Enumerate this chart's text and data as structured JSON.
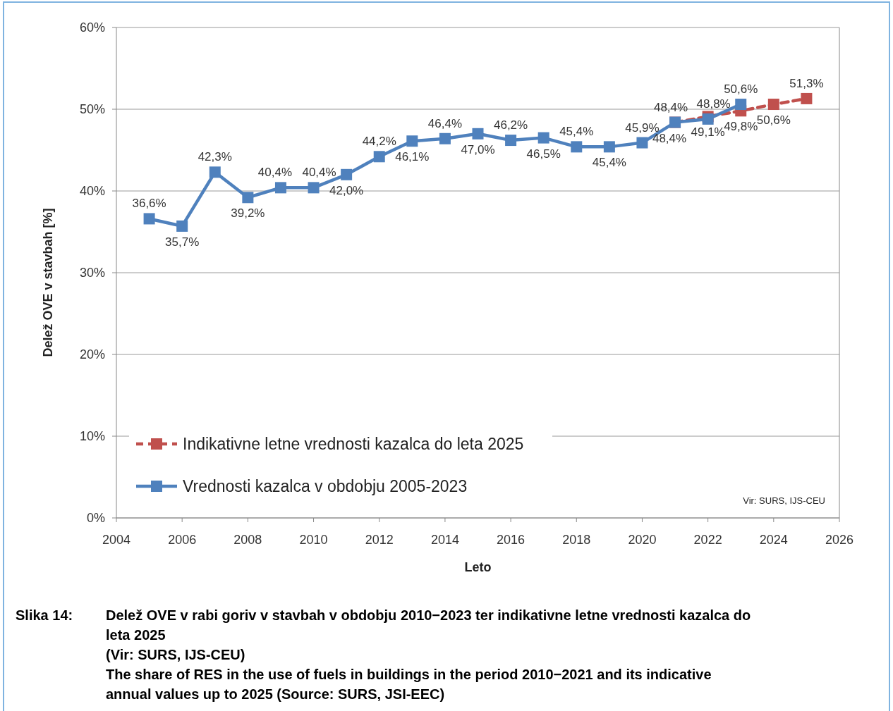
{
  "chart_data": {
    "type": "line",
    "xlabel": "Leto",
    "ylabel": "Delež OVE v stavbah [%]",
    "xlim": [
      2004,
      2026
    ],
    "xticks": [
      2004,
      2006,
      2008,
      2010,
      2012,
      2014,
      2016,
      2018,
      2020,
      2022,
      2024,
      2026
    ],
    "ylim": [
      0,
      60
    ],
    "yticks": [
      {
        "value": 0,
        "label": "0%"
      },
      {
        "value": 10,
        "label": "10%"
      },
      {
        "value": 20,
        "label": "20%"
      },
      {
        "value": 30,
        "label": "30%"
      },
      {
        "value": 40,
        "label": "40%"
      },
      {
        "value": 50,
        "label": "50%"
      },
      {
        "value": 60,
        "label": "60%"
      }
    ],
    "grid": "y",
    "legend": "bottom left",
    "marker": "square",
    "data_labels": true,
    "series": [
      {
        "name": "Indikativne letne vrednosti kazalca do leta 2025",
        "color": "#c0504d",
        "line_style": "dashed",
        "x": [
          2021,
          2022,
          2023,
          2024,
          2025
        ],
        "values": [
          48.4,
          49.1,
          49.8,
          50.6,
          51.3
        ],
        "value_labels": [
          "48,4%",
          "49,1%",
          "49,8%",
          "50,6%",
          "51,3%"
        ]
      },
      {
        "name": "Vrednosti kazalca v obdobju 2005-2023",
        "color": "#4f81bd",
        "line_style": "solid",
        "x": [
          2005,
          2006,
          2007,
          2008,
          2009,
          2010,
          2011,
          2012,
          2013,
          2014,
          2015,
          2016,
          2017,
          2018,
          2019,
          2020,
          2021,
          2022,
          2023
        ],
        "values": [
          36.6,
          35.7,
          42.3,
          39.2,
          40.4,
          40.4,
          42.0,
          44.2,
          46.1,
          46.4,
          47.0,
          46.2,
          46.5,
          45.4,
          45.4,
          45.9,
          48.4,
          48.8,
          50.6
        ],
        "value_labels": [
          "36,6%",
          "35,7%",
          "42,3%",
          "39,2%",
          "40,4%",
          "40,4%",
          "42,0%",
          "44,2%",
          "46,1%",
          "46,4%",
          "47,0%",
          "46,2%",
          "46,5%",
          "45,4%",
          "45,4%",
          "45,9%",
          "48,4%",
          "48,8%",
          "50,6%"
        ]
      }
    ],
    "annotations": [
      "Vir: SURS, IJS-CEU",
      "Slika 14:",
      "Delež OVE v rabi goriv v stavbah v obdobju 2010−2023 ter indikativne letne vrednosti kazalca do leta 2025",
      "(Vir: SURS, IJS-CEU)",
      "The share of RES in the use of fuels in buildings in the period 2010−2021 and its indicative annual values up to 2025 (Source: SURS, JSI-EEC)"
    ]
  }
}
